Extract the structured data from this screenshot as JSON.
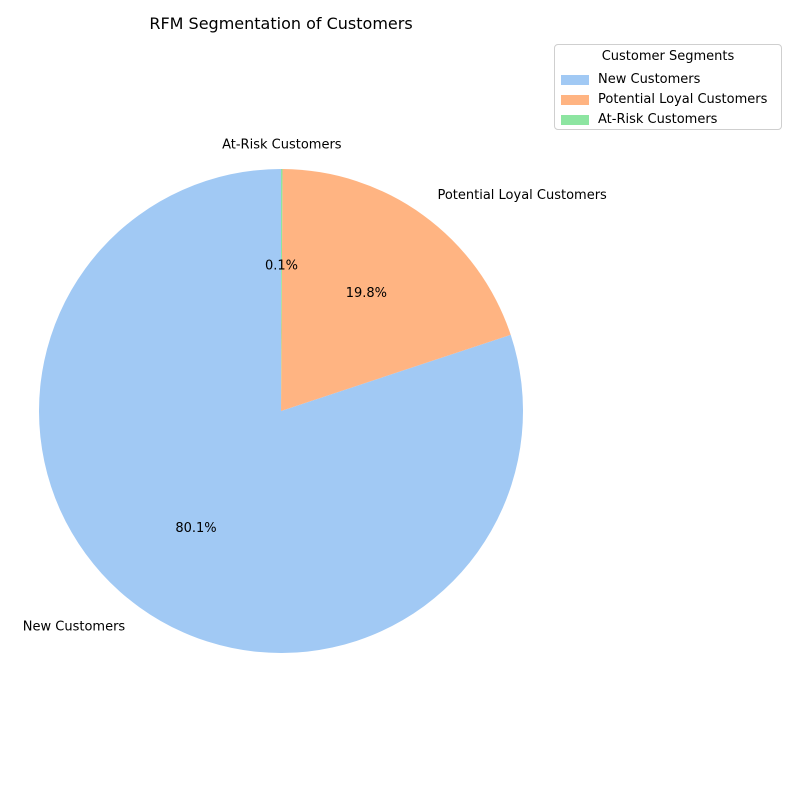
{
  "chart_data": {
    "type": "pie",
    "title": "RFM Segmentation of Customers",
    "categories": [
      "New Customers",
      "Potential Loyal Customers",
      "At-Risk Customers"
    ],
    "values": [
      80.1,
      19.8,
      0.1
    ],
    "percent_labels": [
      "80.1%",
      "19.8%",
      "0.1%"
    ],
    "colors": [
      "#a1c9f4",
      "#ffb482",
      "#8de5a1"
    ],
    "start_angle_deg": 90,
    "direction": "counterclockwise",
    "legend": {
      "title": "Customer Segments",
      "placement": "top-right",
      "entries": [
        "New Customers",
        "Potential Loyal Customers",
        "At-Risk Customers"
      ]
    }
  }
}
